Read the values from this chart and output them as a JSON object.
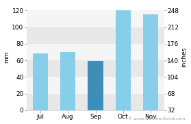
{
  "categories": [
    "Jul",
    "Aug",
    "Sep",
    "Oct",
    "Nov"
  ],
  "values": [
    68,
    70,
    59,
    120,
    115
  ],
  "bar_colors": [
    "#87CEEB",
    "#87CEEB",
    "#3d8eb9",
    "#87CEEB",
    "#87CEEB"
  ],
  "ylabel_left": "mm",
  "ylabel_right": "inches",
  "ylim_left": [
    0,
    128
  ],
  "yticks_left": [
    0,
    20,
    40,
    60,
    80,
    100,
    120
  ],
  "yticks_right": [
    32,
    68,
    104,
    140,
    176,
    212,
    248
  ],
  "background_color": "#ffffff",
  "plot_bg_color": "#ffffff",
  "band_colors": [
    "#e8e8e8",
    "#f5f5f5"
  ],
  "watermark": "© www.weather2visit.com",
  "axis_fontsize": 6.5,
  "tick_fontsize": 6.5
}
